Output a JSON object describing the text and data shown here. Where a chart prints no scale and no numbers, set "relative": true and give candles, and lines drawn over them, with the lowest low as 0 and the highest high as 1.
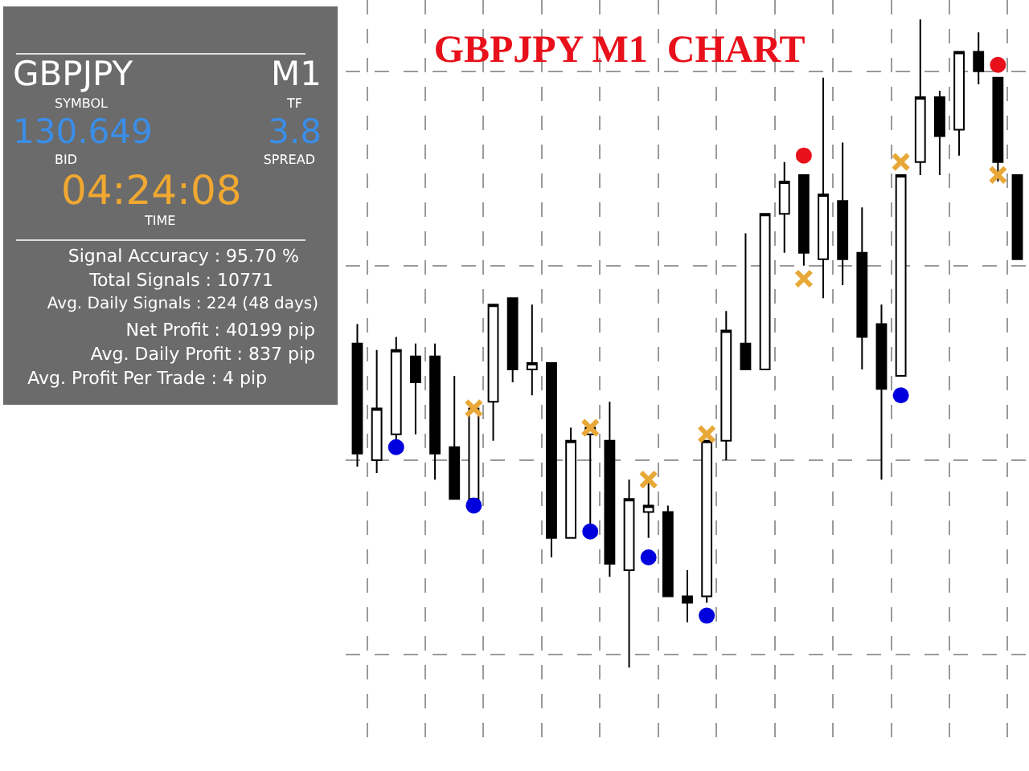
{
  "chart_data": [
    {
      "type": "candlestick",
      "title": "GBPJPY M1  CHART",
      "relative": true,
      "grid": true,
      "categories": [
        null,
        null,
        null,
        null,
        null,
        null,
        null,
        null,
        null,
        null,
        null,
        null,
        null,
        null,
        null,
        null,
        null,
        null,
        null,
        null,
        null,
        null,
        null,
        null,
        null,
        null,
        null,
        null,
        null,
        null,
        null,
        null,
        null,
        null,
        null
      ],
      "ohlc": [
        [
          0.5,
          0.53,
          0.31,
          0.33
        ],
        [
          0.32,
          0.49,
          0.3,
          0.4
        ],
        [
          0.36,
          0.51,
          0.35,
          0.49
        ],
        [
          0.48,
          0.5,
          0.36,
          0.44
        ],
        [
          0.48,
          0.5,
          0.29,
          0.33
        ],
        [
          0.34,
          0.45,
          0.26,
          0.26
        ],
        [
          0.26,
          0.4,
          0.26,
          0.4
        ],
        [
          0.41,
          0.56,
          0.35,
          0.56
        ],
        [
          0.57,
          0.57,
          0.44,
          0.46
        ],
        [
          0.46,
          0.56,
          0.42,
          0.47
        ],
        [
          0.47,
          0.47,
          0.17,
          0.2
        ],
        [
          0.2,
          0.37,
          0.2,
          0.35
        ],
        [
          0.36,
          0.37,
          0.22,
          0.37
        ],
        [
          0.35,
          0.41,
          0.14,
          0.16
        ],
        [
          0.15,
          0.29,
          0.0,
          0.26
        ],
        [
          0.24,
          0.29,
          0.2,
          0.25
        ],
        [
          0.24,
          0.25,
          0.11,
          0.11
        ],
        [
          0.11,
          0.15,
          0.07,
          0.1
        ],
        [
          0.11,
          0.35,
          0.1,
          0.35
        ],
        [
          0.35,
          0.55,
          0.32,
          0.52
        ],
        [
          0.5,
          0.67,
          0.46,
          0.46
        ],
        [
          0.46,
          0.7,
          0.46,
          0.7
        ],
        [
          0.7,
          0.78,
          0.64,
          0.75
        ],
        [
          0.76,
          0.76,
          0.62,
          0.64
        ],
        [
          0.63,
          0.91,
          0.57,
          0.73
        ],
        [
          0.72,
          0.81,
          0.59,
          0.63
        ],
        [
          0.64,
          0.71,
          0.46,
          0.51
        ],
        [
          0.53,
          0.56,
          0.29,
          0.43
        ],
        [
          0.45,
          0.76,
          0.45,
          0.76
        ],
        [
          0.78,
          1.0,
          0.76,
          0.88
        ],
        [
          0.88,
          0.89,
          0.76,
          0.82
        ],
        [
          0.83,
          0.95,
          0.79,
          0.95
        ],
        [
          0.95,
          0.98,
          0.9,
          0.92
        ],
        [
          0.91,
          0.91,
          0.75,
          0.78
        ],
        [
          0.76,
          0.76,
          0.63,
          0.63
        ]
      ],
      "series": [
        {
          "type": "scatter",
          "color": "#e8a838",
          "marker": "cross",
          "values": [
            null,
            null,
            null,
            null,
            null,
            null,
            0.4,
            null,
            null,
            null,
            null,
            null,
            0.37,
            null,
            null,
            0.29,
            null,
            null,
            0.36,
            null,
            null,
            null,
            null,
            0.6,
            null,
            null,
            null,
            null,
            0.78,
            null,
            null,
            null,
            null,
            0.76,
            null
          ]
        },
        {
          "type": "scatter",
          "color": "#0000dd",
          "marker": "circle",
          "values": [
            null,
            null,
            0.34,
            null,
            null,
            null,
            0.25,
            null,
            null,
            null,
            null,
            null,
            0.21,
            null,
            null,
            0.17,
            null,
            null,
            0.08,
            null,
            null,
            null,
            null,
            null,
            null,
            null,
            null,
            null,
            0.42,
            null,
            null,
            null,
            null,
            null,
            null
          ]
        },
        {
          "type": "scatter",
          "color": "#e8101a",
          "marker": "circle",
          "values": [
            null,
            null,
            null,
            null,
            null,
            null,
            null,
            null,
            null,
            null,
            null,
            null,
            null,
            null,
            null,
            null,
            null,
            null,
            null,
            null,
            null,
            null,
            null,
            0.79,
            null,
            null,
            null,
            null,
            null,
            null,
            null,
            null,
            null,
            0.93,
            null
          ]
        }
      ]
    },
    {
      "type": "other",
      "annotations": [
        "GBPJPY",
        "M1",
        "SYMBOL",
        "TF",
        "130.649",
        "3.8",
        "BID",
        "SPREAD",
        "04:24:08",
        "TIME",
        "Signal Accuracy : 95.70 %",
        "Total Signals : 10771",
        "Avg. Daily Signals : 224 (48 days)",
        "Net Profit : 40199 pip",
        "Avg. Daily Profit : 837 pip",
        "Avg. Profit Per Trade : 4 pip"
      ]
    }
  ]
}
